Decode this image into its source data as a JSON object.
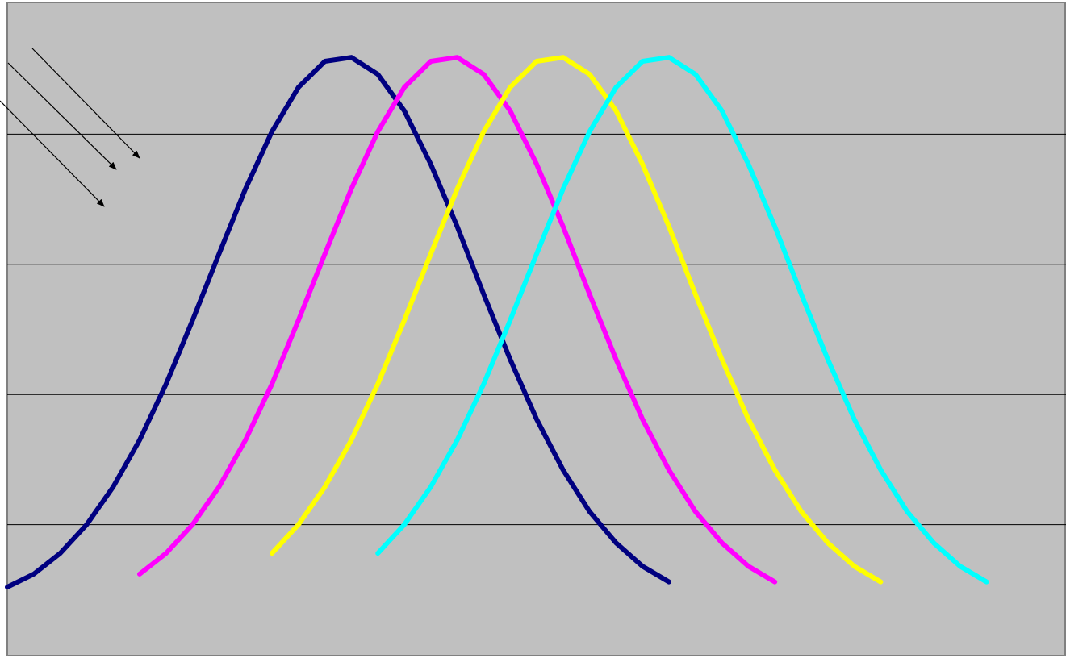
{
  "chart_data": {
    "type": "line",
    "xlim": [
      0,
      40
    ],
    "ylim": [
      0,
      5
    ],
    "yticks": [
      1,
      2,
      3,
      4
    ],
    "grid": true,
    "background": "#c0c0c0",
    "series": [
      {
        "color": "#000080",
        "x": [
          0,
          1,
          2,
          3,
          4,
          5,
          6,
          7,
          8,
          9,
          10,
          11,
          12,
          13,
          14,
          15,
          16,
          17,
          18,
          19,
          20,
          21,
          22,
          23,
          24,
          25
        ],
        "values": [
          0.52,
          0.62,
          0.78,
          1.0,
          1.29,
          1.65,
          2.08,
          2.57,
          3.08,
          3.58,
          4.02,
          4.36,
          4.56,
          4.59,
          4.46,
          4.18,
          3.77,
          3.29,
          2.77,
          2.27,
          1.81,
          1.42,
          1.1,
          0.86,
          0.68,
          0.56
        ]
      },
      {
        "color": "#ff00ff",
        "x": [
          5,
          6,
          7,
          8,
          9,
          10,
          11,
          12,
          13,
          14,
          15,
          16,
          17,
          18,
          19,
          20,
          21,
          22,
          23,
          24,
          25,
          26,
          27,
          28,
          29
        ],
        "values": [
          0.62,
          0.78,
          1.0,
          1.29,
          1.65,
          2.08,
          2.57,
          3.08,
          3.58,
          4.02,
          4.36,
          4.56,
          4.59,
          4.46,
          4.18,
          3.77,
          3.29,
          2.77,
          2.27,
          1.81,
          1.42,
          1.1,
          0.86,
          0.68,
          0.56
        ]
      },
      {
        "color": "#ffff00",
        "x": [
          10,
          11,
          12,
          13,
          14,
          15,
          16,
          17,
          18,
          19,
          20,
          21,
          22,
          23,
          24,
          25,
          26,
          27,
          28,
          29,
          30,
          31,
          32,
          33
        ],
        "values": [
          0.78,
          1.0,
          1.29,
          1.65,
          2.08,
          2.57,
          3.08,
          3.58,
          4.02,
          4.36,
          4.56,
          4.59,
          4.46,
          4.18,
          3.77,
          3.29,
          2.77,
          2.27,
          1.81,
          1.42,
          1.1,
          0.86,
          0.68,
          0.56
        ]
      },
      {
        "color": "#00ffff",
        "x": [
          14,
          15,
          16,
          17,
          18,
          19,
          20,
          21,
          22,
          23,
          24,
          25,
          26,
          27,
          28,
          29,
          30,
          31,
          32,
          33,
          34,
          35,
          36,
          37
        ],
        "values": [
          0.78,
          1.0,
          1.29,
          1.65,
          2.08,
          2.57,
          3.08,
          3.58,
          4.02,
          4.36,
          4.56,
          4.59,
          4.46,
          4.18,
          3.77,
          3.29,
          2.77,
          2.27,
          1.81,
          1.42,
          1.1,
          0.86,
          0.68,
          0.56
        ]
      }
    ]
  }
}
